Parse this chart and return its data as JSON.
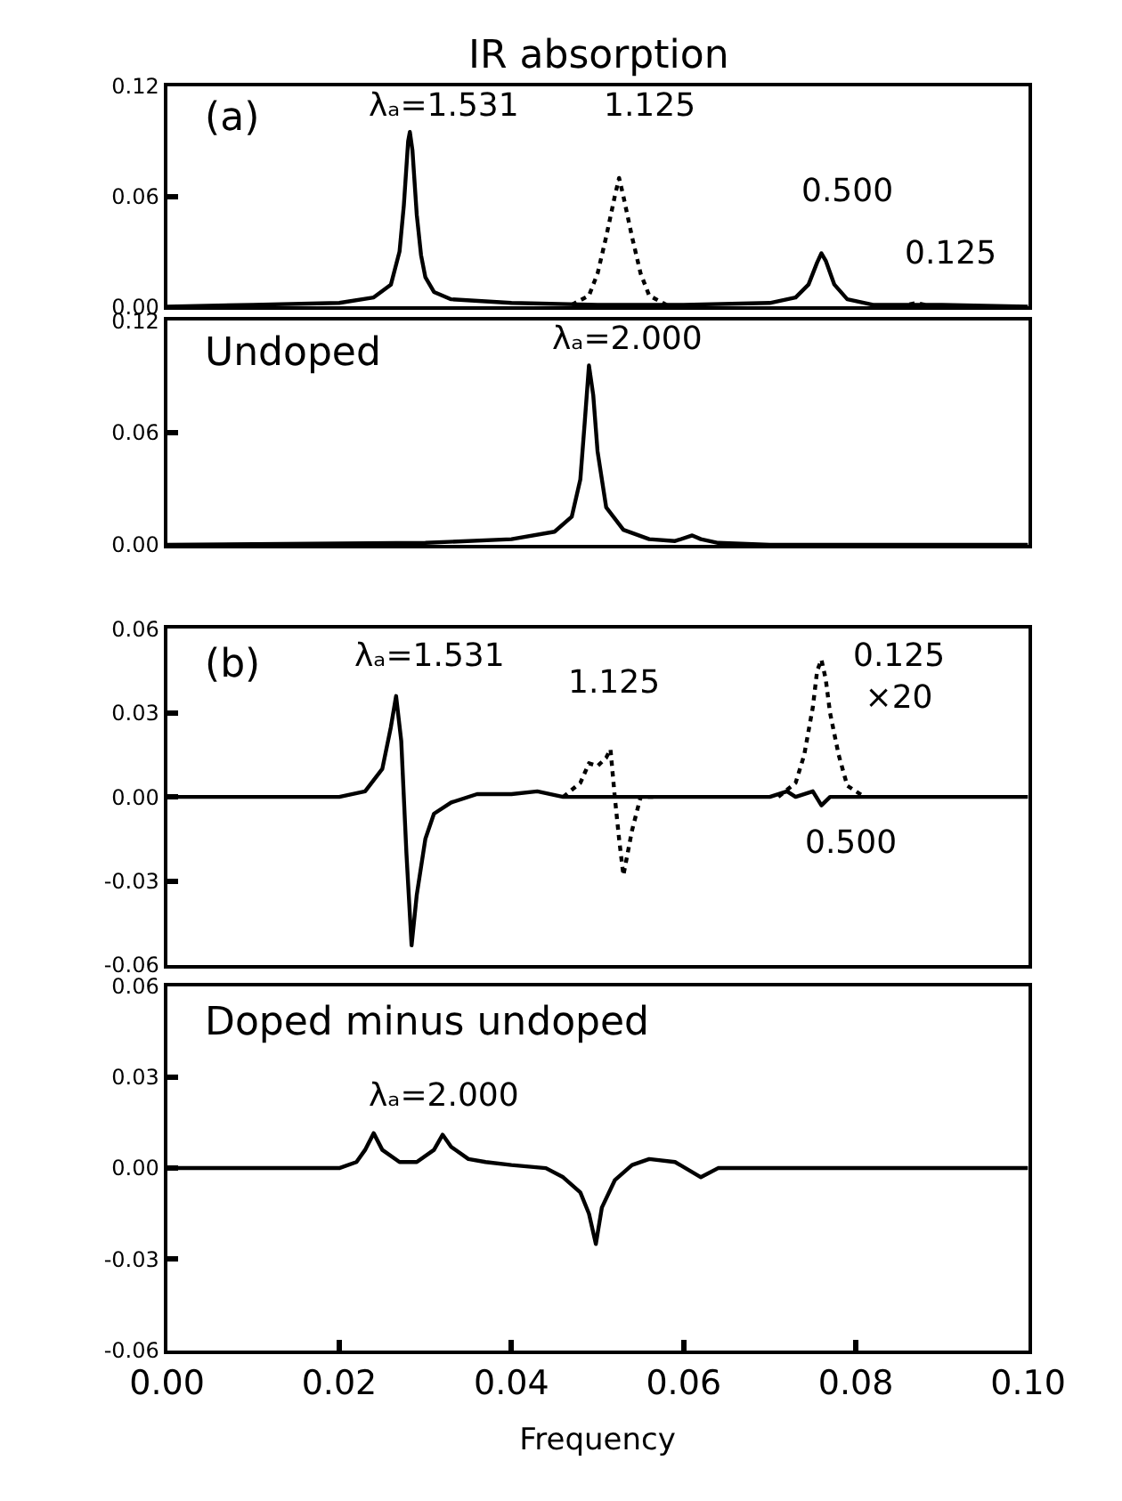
{
  "chart_data": [
    {
      "type": "line",
      "title": "IR absorption",
      "tick_labels": "y",
      "xlim": [
        0,
        0.1
      ],
      "ylim": [
        0,
        0.12
      ],
      "yticks": [
        {
          "value": 0,
          "label": "0.00"
        },
        {
          "value": 0.06,
          "label": "0.06"
        },
        {
          "value": 0.12,
          "label": "0.12"
        }
      ],
      "series": [
        {
          "color": "#000000",
          "line_style": "solid",
          "x": [
            0,
            0.01,
            0.02,
            0.024,
            0.026,
            0.027,
            0.0275,
            0.028,
            0.0282,
            0.0285,
            0.029,
            0.0295,
            0.03,
            0.031,
            0.033,
            0.04,
            0.05,
            0.06,
            0.07,
            0.073,
            0.0745,
            0.0755,
            0.076,
            0.0765,
            0.0775,
            0.079,
            0.082,
            0.09,
            0.1
          ],
          "values": [
            0,
            0.001,
            0.002,
            0.005,
            0.012,
            0.03,
            0.055,
            0.09,
            0.095,
            0.085,
            0.05,
            0.028,
            0.016,
            0.008,
            0.004,
            0.002,
            0.001,
            0.001,
            0.002,
            0.005,
            0.012,
            0.024,
            0.029,
            0.025,
            0.012,
            0.004,
            0.001,
            0.001,
            0
          ]
        },
        {
          "color": "#000000",
          "line_style": "dotted",
          "x": [
            0.047,
            0.049,
            0.05,
            0.051,
            0.052,
            0.0525,
            0.053,
            0.054,
            0.055,
            0.056,
            0.058
          ],
          "values": [
            0.001,
            0.006,
            0.018,
            0.038,
            0.06,
            0.07,
            0.06,
            0.038,
            0.018,
            0.006,
            0.001
          ]
        },
        {
          "color": "#000000",
          "line_style": "dotted",
          "x": [
            0.085,
            0.087,
            0.089
          ],
          "values": [
            0,
            0.002,
            0
          ]
        }
      ],
      "annotations": [
        "(a)",
        "λₐ=1.531",
        "1.125",
        "0.500",
        "0.125"
      ]
    },
    {
      "type": "line",
      "tick_labels": "y",
      "xlim": [
        0,
        0.1
      ],
      "ylim": [
        0,
        0.12
      ],
      "yticks": [
        {
          "value": 0,
          "label": "0.00"
        },
        {
          "value": 0.06,
          "label": "0.06"
        },
        {
          "value": 0.12,
          "label": "0.12"
        }
      ],
      "series": [
        {
          "color": "#000000",
          "line_style": "solid",
          "x": [
            0,
            0.03,
            0.04,
            0.045,
            0.047,
            0.048,
            0.0485,
            0.049,
            0.0495,
            0.05,
            0.051,
            0.053,
            0.056,
            0.059,
            0.061,
            0.062,
            0.064,
            0.07,
            0.1
          ],
          "values": [
            0,
            0.001,
            0.003,
            0.007,
            0.015,
            0.035,
            0.065,
            0.096,
            0.08,
            0.05,
            0.02,
            0.008,
            0.003,
            0.002,
            0.005,
            0.003,
            0.001,
            0,
            0
          ]
        }
      ],
      "annotations": [
        "Undoped",
        "λₐ=2.000"
      ]
    },
    {
      "type": "line",
      "tick_labels": "y",
      "xlim": [
        0,
        0.1
      ],
      "ylim": [
        -0.06,
        0.06
      ],
      "yticks": [
        {
          "value": -0.06,
          "label": "-0.06"
        },
        {
          "value": -0.03,
          "label": "-0.03"
        },
        {
          "value": 0,
          "label": "0.00"
        },
        {
          "value": 0.03,
          "label": "0.03"
        },
        {
          "value": 0.06,
          "label": "0.06"
        }
      ],
      "series": [
        {
          "color": "#000000",
          "line_style": "solid",
          "x": [
            0,
            0.02,
            0.023,
            0.025,
            0.026,
            0.0266,
            0.0272,
            0.0278,
            0.0284,
            0.029,
            0.03,
            0.031,
            0.033,
            0.036,
            0.04,
            0.043,
            0.046,
            0.06,
            0.07,
            0.072,
            0.073,
            0.075,
            0.076,
            0.077,
            0.08,
            0.1
          ],
          "values": [
            0,
            0,
            0.002,
            0.01,
            0.025,
            0.036,
            0.02,
            -0.02,
            -0.053,
            -0.035,
            -0.015,
            -0.006,
            -0.002,
            0.001,
            0.001,
            0.002,
            0,
            0,
            0,
            0.002,
            0,
            0.002,
            -0.003,
            0,
            0,
            0
          ]
        },
        {
          "color": "#000000",
          "line_style": "dotted",
          "x": [
            0.046,
            0.048,
            0.049,
            0.05,
            0.051,
            0.0515,
            0.052,
            0.0525,
            0.053,
            0.054,
            0.055,
            0.057
          ],
          "values": [
            0,
            0.005,
            0.012,
            0.011,
            0.014,
            0.017,
            0,
            -0.015,
            -0.028,
            -0.012,
            0,
            0
          ]
        },
        {
          "color": "#000000",
          "line_style": "dotted",
          "x": [
            0.071,
            0.073,
            0.074,
            0.075,
            0.0755,
            0.076,
            0.0765,
            0.077,
            0.078,
            0.079,
            0.081
          ],
          "values": [
            0,
            0.005,
            0.015,
            0.032,
            0.045,
            0.049,
            0.042,
            0.03,
            0.015,
            0.004,
            0
          ]
        }
      ],
      "annotations": [
        "(b)",
        "λₐ=1.531",
        "1.125",
        "0.125\n×20",
        "0.500"
      ]
    },
    {
      "type": "line",
      "xlabel": "Frequency",
      "xlim": [
        0,
        0.1
      ],
      "xticks": [
        {
          "value": 0,
          "label": "0.00"
        },
        {
          "value": 0.02,
          "label": "0.02"
        },
        {
          "value": 0.04,
          "label": "0.04"
        },
        {
          "value": 0.06,
          "label": "0.06"
        },
        {
          "value": 0.08,
          "label": "0.08"
        },
        {
          "value": 0.1,
          "label": "0.10"
        }
      ],
      "ylim": [
        -0.06,
        0.06
      ],
      "yticks": [
        {
          "value": -0.06,
          "label": "-0.06"
        },
        {
          "value": -0.03,
          "label": "-0.03"
        },
        {
          "value": 0,
          "label": "0.00"
        },
        {
          "value": 0.03,
          "label": "0.03"
        },
        {
          "value": 0.06,
          "label": "0.06"
        }
      ],
      "series": [
        {
          "color": "#000000",
          "line_style": "solid",
          "x": [
            0,
            0.02,
            0.022,
            0.023,
            0.024,
            0.025,
            0.027,
            0.029,
            0.031,
            0.032,
            0.033,
            0.035,
            0.037,
            0.04,
            0.044,
            0.046,
            0.048,
            0.049,
            0.0498,
            0.0505,
            0.052,
            0.054,
            0.056,
            0.059,
            0.062,
            0.064,
            0.07,
            0.1
          ],
          "values": [
            0,
            0,
            0.002,
            0.006,
            0.0115,
            0.006,
            0.002,
            0.002,
            0.006,
            0.011,
            0.007,
            0.003,
            0.002,
            0.001,
            0,
            -0.003,
            -0.008,
            -0.015,
            -0.025,
            -0.013,
            -0.004,
            0.001,
            0.003,
            0.002,
            -0.003,
            0,
            0,
            0
          ]
        }
      ],
      "annotations": [
        "Doped minus undoped",
        "λₐ=2.000"
      ]
    }
  ]
}
